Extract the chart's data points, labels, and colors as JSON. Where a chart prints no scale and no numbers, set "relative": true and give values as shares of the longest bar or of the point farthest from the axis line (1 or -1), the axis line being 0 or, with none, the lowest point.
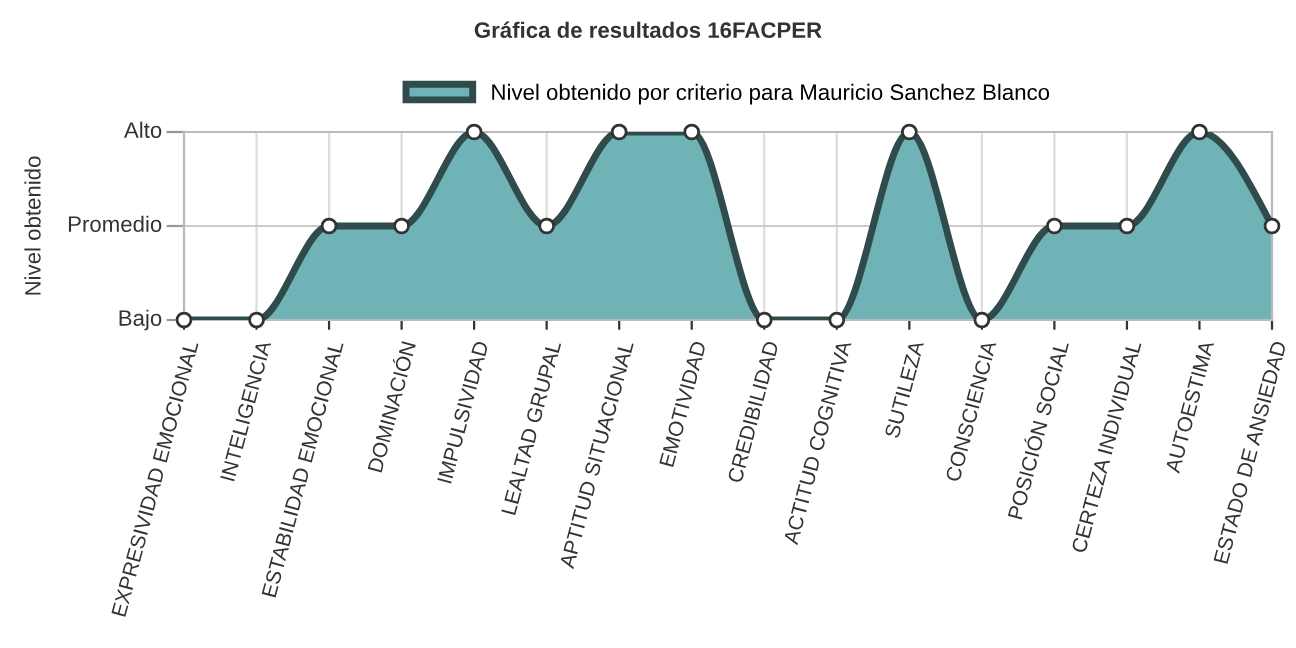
{
  "chart_data": {
    "type": "area",
    "title": "Gráfica de resultados 16FACPER",
    "ylabel": "Nivel obtenido",
    "categories": [
      "EXPRESIVIDAD EMOCIONAL",
      "INTELIGENCIA",
      "ESTABILIDAD EMOCIONAL",
      "DOMINACIÓN",
      "IMPULSIVIDAD",
      "LEALTAD GRUPAL",
      "APTITUD SITUACIONAL",
      "EMOTIVIDAD",
      "CREDIBILIDAD",
      "ACTITUD COGNITIVA",
      "SUTILEZA",
      "CONSCIENCIA",
      "POSICIÓN SOCIAL",
      "CERTEZA INDIVIDUAL",
      "AUTOESTIMA",
      "ESTADO DE ANSIEDAD"
    ],
    "series": [
      {
        "name": "Nivel obtenido por criterio para Mauricio Sanchez Blanco",
        "color": "#6fb3b6",
        "values": [
          0,
          0,
          0.5,
          0.5,
          1,
          0.5,
          1,
          1,
          0,
          0,
          1,
          0,
          0.5,
          0.5,
          1,
          0.5
        ]
      }
    ],
    "relative": true,
    "ref_lines": [
      {
        "axis": "y",
        "value": 0,
        "label": "Bajo"
      },
      {
        "axis": "y",
        "value": 0.5,
        "label": "Promedio"
      },
      {
        "axis": "y",
        "value": 1,
        "label": "Alto"
      }
    ],
    "grid": true,
    "legend": "top",
    "marker": "circle",
    "line_style": "solid"
  }
}
